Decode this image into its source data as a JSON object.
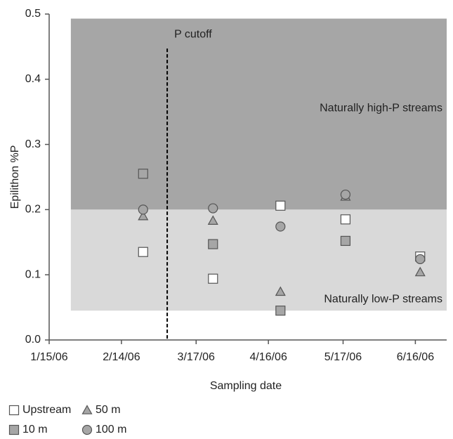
{
  "chart_data": {
    "type": "scatter",
    "x_label": "Sampling date",
    "y_label": "Epilithon %P",
    "xlim": [
      "1/15/06",
      "6/29/06"
    ],
    "xticks": [
      "1/15/06",
      "2/14/06",
      "3/17/06",
      "4/16/06",
      "5/17/06",
      "6/16/06"
    ],
    "ylim": [
      0,
      0.5
    ],
    "yticks": [
      {
        "value": 0,
        "label": "0.0"
      },
      0.1,
      0.2,
      0.3,
      0.4,
      0.5
    ],
    "bands": [
      {
        "from": 0.2,
        "to": 0.493,
        "x_from": "1/24/06",
        "label": "Naturally high-P streams",
        "color": "#a6a6a6"
      },
      {
        "from": 0.045,
        "to": 0.2,
        "x_from": "1/24/06",
        "label": "Naturally low-P streams",
        "color": "#d9d9d9"
      }
    ],
    "cutoff": {
      "x": "3/5/06",
      "ymax": 0.447,
      "label": "P cutoff"
    },
    "x": [
      "2/23/06",
      "3/24/06",
      "4/21/06",
      "5/18/06",
      "6/18/06"
    ],
    "series": [
      {
        "name": "Upstream",
        "marker": "square",
        "color": "#ffffff",
        "values": [
          0.135,
          0.094,
          0.206,
          0.185,
          0.128
        ]
      },
      {
        "name": "50 m",
        "marker": "triangle",
        "color": "#a6a6a6",
        "values": [
          0.19,
          0.183,
          0.074,
          0.22,
          0.104
        ]
      },
      {
        "name": "10 m",
        "marker": "square",
        "color": "#a6a6a6",
        "values": [
          0.255,
          0.147,
          0.045,
          0.152,
          null
        ]
      },
      {
        "name": "100 m",
        "marker": "circle",
        "color": "#a6a6a6",
        "values": [
          0.2,
          0.202,
          0.174,
          0.223,
          0.124
        ]
      }
    ]
  }
}
